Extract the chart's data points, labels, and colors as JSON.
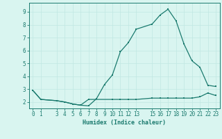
{
  "xlabel": "Humidex (Indice chaleur)",
  "x_main": [
    0,
    1,
    3,
    4,
    5,
    6,
    7,
    8,
    9,
    10,
    11,
    12,
    13,
    15,
    16,
    17,
    18,
    19,
    20,
    21,
    22,
    23
  ],
  "y_main": [
    2.9,
    2.2,
    2.1,
    2.0,
    1.85,
    1.75,
    1.7,
    2.25,
    3.35,
    4.1,
    5.9,
    6.6,
    7.65,
    8.05,
    8.75,
    9.2,
    8.3,
    6.5,
    5.2,
    4.7,
    3.3,
    3.2
  ],
  "x_secondary": [
    0,
    1,
    3,
    4,
    5,
    6,
    7,
    10,
    11,
    12,
    13,
    15,
    16,
    17,
    18,
    19,
    20,
    21,
    22,
    23
  ],
  "y_secondary": [
    2.9,
    2.2,
    2.1,
    2.0,
    1.85,
    1.75,
    2.2,
    2.2,
    2.2,
    2.2,
    2.2,
    2.3,
    2.3,
    2.3,
    2.3,
    2.3,
    2.3,
    2.4,
    2.7,
    2.5
  ],
  "line_color": "#1a7a6e",
  "bg_color": "#d9f5f0",
  "grid_color": "#c0e8e2",
  "ylim": [
    1.5,
    9.7
  ],
  "xlim": [
    -0.5,
    23.5
  ],
  "yticks": [
    2,
    3,
    4,
    5,
    6,
    7,
    8,
    9
  ],
  "xticks": [
    0,
    1,
    3,
    4,
    5,
    6,
    7,
    8,
    9,
    10,
    11,
    12,
    13,
    15,
    16,
    17,
    18,
    19,
    20,
    21,
    22,
    23
  ]
}
